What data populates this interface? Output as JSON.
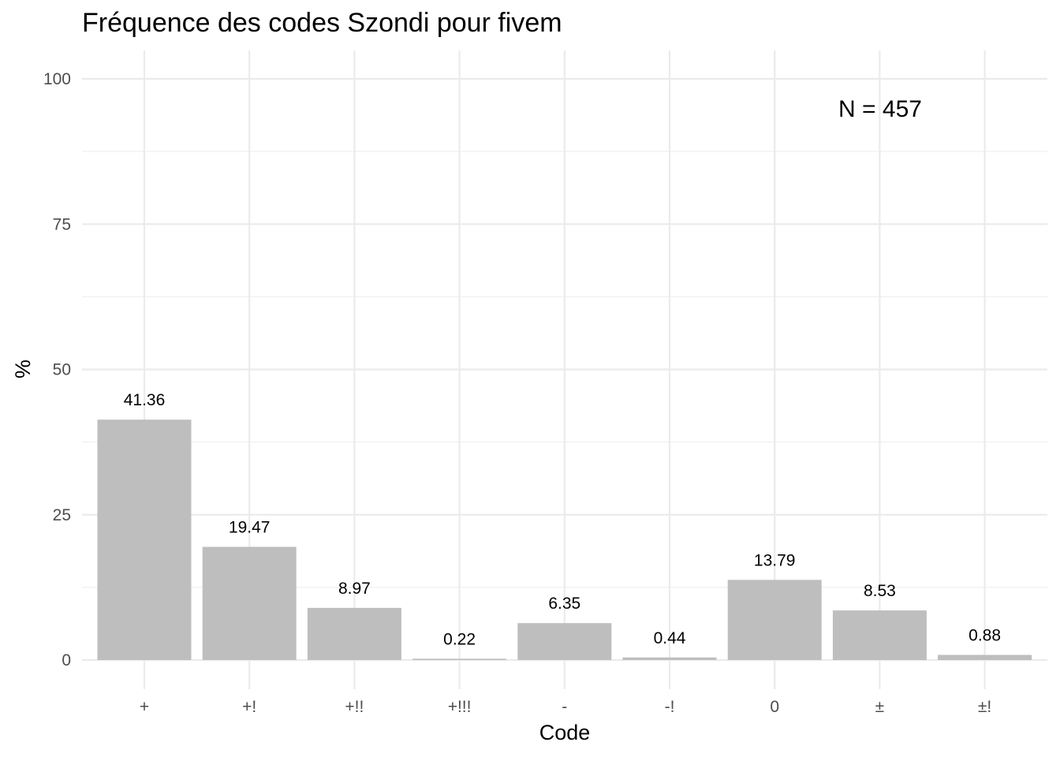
{
  "chart_data": {
    "type": "bar",
    "title": "Fréquence des codes Szondi pour fivem",
    "xlabel": "Code",
    "ylabel": "%",
    "categories": [
      "+",
      "+!",
      "+!!",
      "+!!!",
      "-",
      "-!",
      "0",
      "±",
      "±!"
    ],
    "values": [
      41.36,
      19.47,
      8.97,
      0.22,
      6.35,
      0.44,
      13.79,
      8.53,
      0.88
    ],
    "data_labels": [
      "41.36",
      "19.47",
      "8.97",
      "0.22",
      "6.35",
      "0.44",
      "13.79",
      "8.53",
      "0.88"
    ],
    "ylim": [
      0,
      100
    ],
    "yticks": [
      0,
      25,
      50,
      75,
      100
    ],
    "ytick_labels": [
      "0",
      "25",
      "50",
      "75",
      "100"
    ],
    "grid": true,
    "legend": "none",
    "annotation": "N = 457",
    "bar_color": "#bebebe",
    "grid_color": "#ebebeb"
  }
}
